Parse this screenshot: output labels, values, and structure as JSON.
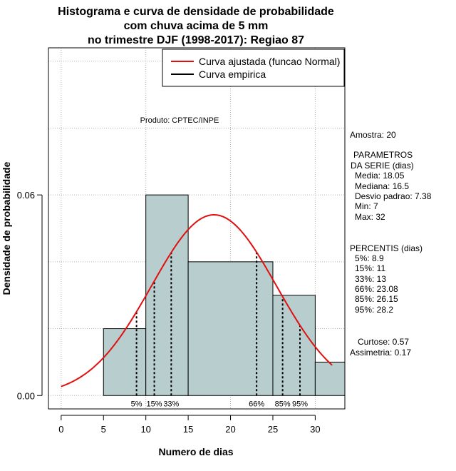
{
  "chart_data": {
    "type": "bar",
    "title_lines": [
      "Histograma e curva de densidade de probabilidade",
      "com chuva acima de 5 mm",
      "no trimestre DJF (1998-2017): Regiao 87"
    ],
    "xlabel": "Numero de dias",
    "ylabel": "Densidade de probabilidade",
    "xlim": [
      -1.5,
      33.5
    ],
    "ylim": [
      -0.004,
      0.104
    ],
    "x_ticks": [
      0,
      5,
      10,
      15,
      20,
      25,
      30
    ],
    "y_ticks": [
      {
        "value": 0.0,
        "label": "0.00"
      },
      {
        "value": 0.06,
        "label": "0.06"
      }
    ],
    "grid": true,
    "grid_x": [
      0,
      10,
      20,
      30
    ],
    "grid_y": [
      0,
      0.02,
      0.04,
      0.06,
      0.08,
      0.1
    ],
    "bins": [
      {
        "from": 5,
        "to": 10,
        "density": 0.02
      },
      {
        "from": 10,
        "to": 15,
        "density": 0.06
      },
      {
        "from": 15,
        "to": 25,
        "density": 0.04
      },
      {
        "from": 25,
        "to": 30,
        "density": 0.03
      },
      {
        "from": 30,
        "to": 35,
        "density": 0.01
      }
    ],
    "bar_color": "#b8cece",
    "normal_fit": {
      "mean": 18.05,
      "sd": 7.38,
      "x_from": 0,
      "x_to": 32,
      "color": "#e01010"
    },
    "percentile_lines": [
      {
        "x": 8.9,
        "label": "5%"
      },
      {
        "x": 11,
        "label": "15%"
      },
      {
        "x": 13,
        "label": "33%"
      },
      {
        "x": 23.08,
        "label": "66%"
      },
      {
        "x": 26.15,
        "label": "85%"
      },
      {
        "x": 28.2,
        "label": "95%"
      }
    ],
    "legend": {
      "placement": "top-right",
      "entries": [
        {
          "label": "Curva ajustada (funcao Normal)",
          "color": "#e01010"
        },
        {
          "label": "Curva empirica",
          "color": "#000000"
        }
      ]
    },
    "annotation": "Produto: CPTEC/INPE"
  },
  "side_panel": {
    "sample": "Amostra: 20",
    "params_title_1": "PARAMETROS",
    "params_title_2": "DA SERIE (dias)",
    "params": [
      "Media: 18.05",
      "Mediana: 16.5",
      "Desvio padrao: 7.38",
      "Min: 7",
      "Max: 32"
    ],
    "percentis_title": "PERCENTIS (dias)",
    "percentis": [
      "5%: 8.9",
      "15%: 11",
      "33%: 13",
      "66%: 23.08",
      "85%: 26.15",
      "95%: 28.2"
    ],
    "curtose": "Curtose: 0.57",
    "assimetria": "Assimetria: 0.17"
  }
}
